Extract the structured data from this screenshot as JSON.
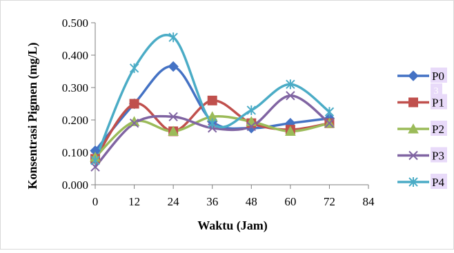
{
  "chart_data": {
    "type": "line",
    "title": "",
    "xlabel": "Waktu (Jam)",
    "ylabel": "Konsentrasi Pigmen (mg/L)",
    "xlim": [
      0,
      84
    ],
    "ylim": [
      0.0,
      0.5
    ],
    "x_ticks": [
      0,
      12,
      24,
      36,
      48,
      60,
      72,
      84
    ],
    "x_tick_labels": [
      "0",
      "12",
      "24",
      "36",
      "48",
      "60",
      "72",
      "84"
    ],
    "y_ticks": [
      0.0,
      0.1,
      0.2,
      0.3,
      0.4,
      0.5
    ],
    "y_tick_labels": [
      "0.000",
      "0.100",
      "0.200",
      "0.300",
      "0.400",
      "0.500"
    ],
    "grid": false,
    "smooth": true,
    "legend_position": "right",
    "x": [
      0,
      12,
      24,
      36,
      48,
      60,
      72
    ],
    "series": [
      {
        "name": "P0",
        "color": "#4472C4",
        "marker": "diamond",
        "values": [
          0.105,
          0.25,
          0.365,
          0.195,
          0.175,
          0.19,
          0.205
        ]
      },
      {
        "name": "P1",
        "color": "#C0504D",
        "marker": "square",
        "values": [
          0.08,
          0.25,
          0.165,
          0.26,
          0.19,
          0.17,
          0.19
        ]
      },
      {
        "name": "P2",
        "color": "#9BBB59",
        "marker": "triangle",
        "values": [
          0.085,
          0.195,
          0.165,
          0.21,
          0.195,
          0.165,
          0.19
        ]
      },
      {
        "name": "P3",
        "color": "#8064A2",
        "marker": "x",
        "values": [
          0.055,
          0.19,
          0.21,
          0.175,
          0.18,
          0.275,
          0.19
        ]
      },
      {
        "name": "P4",
        "color": "#4BACC6",
        "marker": "star",
        "values": [
          0.075,
          0.36,
          0.455,
          0.19,
          0.23,
          0.31,
          0.225
        ]
      }
    ],
    "annotations": [
      "3"
    ]
  }
}
